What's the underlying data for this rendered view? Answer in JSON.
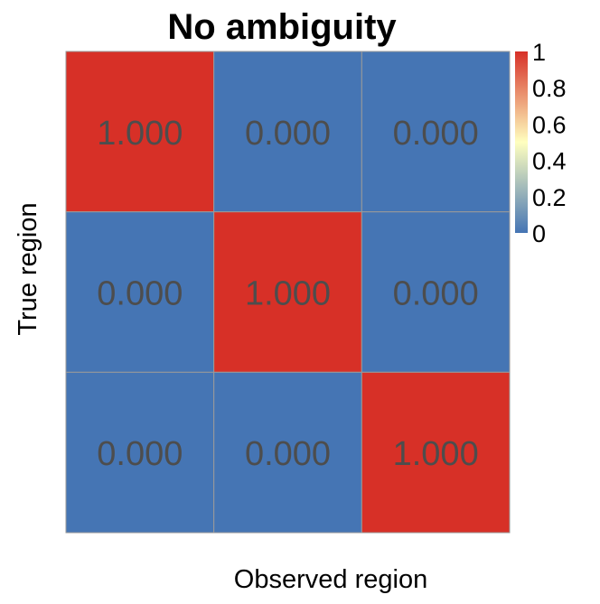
{
  "chart_data": {
    "type": "heatmap",
    "title": "No ambiguity",
    "xlabel": "Observed region",
    "ylabel": "True region",
    "rows": 3,
    "cols": 3,
    "values": [
      [
        1,
        0,
        0
      ],
      [
        0,
        1,
        0
      ],
      [
        0,
        0,
        1
      ]
    ],
    "cell_labels": [
      [
        "1.000",
        "0.000",
        "0.000"
      ],
      [
        "0.000",
        "1.000",
        "0.000"
      ],
      [
        "0.000",
        "0.000",
        "1.000"
      ]
    ],
    "colorscale": {
      "min": 0,
      "max": 1,
      "stops": [
        {
          "value": 0,
          "color": "#4575b4"
        },
        {
          "value": 0.5,
          "color": "#ffffbf"
        },
        {
          "value": 1,
          "color": "#d73027"
        }
      ],
      "tick_labels": [
        "1",
        "0.8",
        "0.6",
        "0.4",
        "0.2",
        "0"
      ]
    },
    "cell_text_color": "#4d4d4d",
    "grid_color": "#9a9a9a",
    "legend_position": "top-right"
  }
}
